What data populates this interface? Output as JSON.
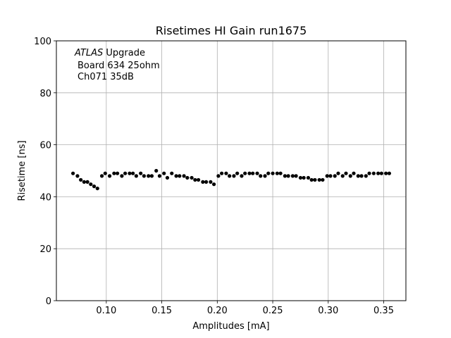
{
  "chart_data": {
    "type": "scatter",
    "title": "Risetimes HI Gain run1675",
    "xlabel": "Amplitudes [mA]",
    "ylabel": "Risetime [ns]",
    "xlim": [
      0.055,
      0.37
    ],
    "ylim": [
      0,
      100
    ],
    "xticks": [
      0.1,
      0.15,
      0.2,
      0.25,
      0.3,
      0.35
    ],
    "xtick_labels": [
      "0.10",
      "0.15",
      "0.20",
      "0.25",
      "0.30",
      "0.35"
    ],
    "yticks": [
      0,
      20,
      40,
      60,
      80,
      100
    ],
    "ytick_labels": [
      "0",
      "20",
      "40",
      "60",
      "80",
      "100"
    ],
    "grid": true,
    "marker_color": "#000000",
    "annotation": {
      "atlas": "ATLAS",
      "line1_rest": " Upgrade",
      "line2": "Board 634 25ohm",
      "line3": "Ch071 35dB"
    },
    "series": [
      {
        "x": [
          0.07,
          0.074,
          0.077,
          0.08,
          0.083,
          0.086,
          0.089,
          0.092,
          0.096,
          0.099,
          0.103,
          0.107,
          0.11,
          0.114,
          0.117,
          0.121,
          0.124,
          0.127,
          0.131,
          0.134,
          0.138,
          0.141,
          0.145,
          0.148,
          0.152,
          0.155,
          0.159,
          0.163,
          0.166,
          0.17,
          0.173,
          0.177,
          0.18,
          0.183,
          0.187,
          0.19,
          0.194,
          0.197,
          0.201,
          0.204,
          0.208,
          0.211,
          0.215,
          0.218,
          0.222,
          0.225,
          0.229,
          0.232,
          0.236,
          0.239,
          0.243,
          0.246,
          0.25,
          0.254,
          0.257,
          0.261,
          0.264,
          0.268,
          0.271,
          0.275,
          0.278,
          0.282,
          0.285,
          0.288,
          0.292,
          0.295,
          0.299,
          0.302,
          0.306,
          0.309,
          0.313,
          0.316,
          0.32,
          0.323,
          0.327,
          0.33,
          0.334,
          0.337,
          0.341,
          0.345,
          0.348,
          0.352,
          0.355
        ],
        "y": [
          49.0,
          48.0,
          46.5,
          45.7,
          45.7,
          44.8,
          44.0,
          43.2,
          48.0,
          49.0,
          48.0,
          49.0,
          49.0,
          48.0,
          49.0,
          49.0,
          49.0,
          48.0,
          49.0,
          48.0,
          48.0,
          48.0,
          50.0,
          48.0,
          49.0,
          47.3,
          49.0,
          48.0,
          48.0,
          48.0,
          47.3,
          47.3,
          46.5,
          46.5,
          45.7,
          45.7,
          45.7,
          44.8,
          48.0,
          49.0,
          49.0,
          48.0,
          48.0,
          49.0,
          48.0,
          49.0,
          49.0,
          49.0,
          49.0,
          48.0,
          48.0,
          49.0,
          49.0,
          49.0,
          49.0,
          48.0,
          48.0,
          48.0,
          48.0,
          47.3,
          47.3,
          47.3,
          46.5,
          46.5,
          46.5,
          46.5,
          48.0,
          48.0,
          48.0,
          49.0,
          48.0,
          49.0,
          48.0,
          49.0,
          48.0,
          48.0,
          48.0,
          49.0,
          49.0,
          49.0,
          49.0,
          49.0,
          49.0
        ]
      }
    ]
  }
}
